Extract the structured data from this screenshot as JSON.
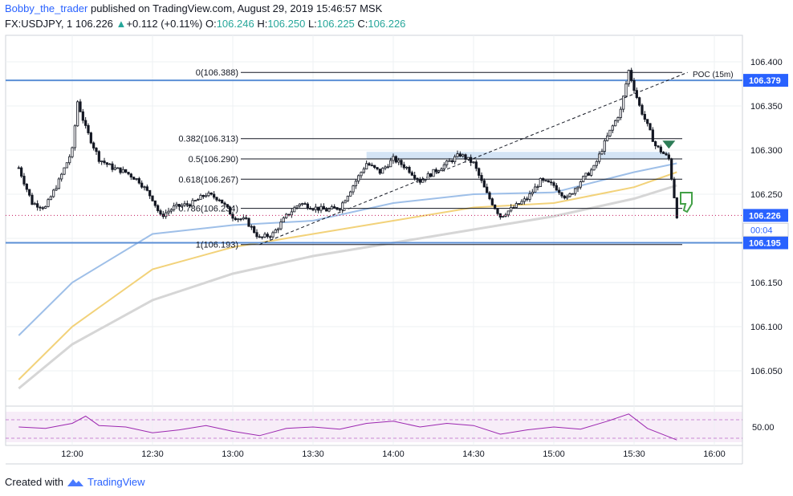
{
  "header": {
    "author": "Bobby_the_trader",
    "published": "published on TradingView.com, August 29, 2019 15:46:57 MSK",
    "symbol": "FX:USDJPY, 1",
    "last": "106.226",
    "change": "+0.112 (+0.11%)",
    "open_label": "O:",
    "open": "106.246",
    "high_label": "H:",
    "high": "106.250",
    "low_label": "L:",
    "low": "106.225",
    "close_label": "C:",
    "close": "106.226"
  },
  "footer": {
    "created_with": "Created with",
    "brand": "TradingView"
  },
  "colors": {
    "candle": "#131722",
    "ema_fast": "#9ebfe8",
    "ema_mid": "#f2d27a",
    "ema_slow": "#d6d6d6",
    "level_line": "#5b8fd6",
    "rsi": "#9c27b0",
    "rsi_band": "#f3e5f5",
    "price_tag": "#2962ff",
    "zone": "#c9ddf3"
  },
  "chart_data": {
    "type": "candlestick",
    "x_ticks": [
      "12:00",
      "12:30",
      "13:00",
      "13:30",
      "14:00",
      "14:30",
      "15:00",
      "15:30",
      "16:00"
    ],
    "y_ticks": [
      "106.400",
      "106.350",
      "106.300",
      "106.250",
      "106.200",
      "106.150",
      "106.100",
      "106.050"
    ],
    "ylim": [
      106.01,
      106.43
    ],
    "price_tags": {
      "upper_level": "106.379",
      "last_price": "106.226",
      "countdown": "00:04",
      "lower_level": "106.195"
    },
    "poc_label": "POC (15m)",
    "fib_labels": [
      {
        "text": "0(106.388)",
        "price": 106.388
      },
      {
        "text": "0.382(106.313)",
        "price": 106.313
      },
      {
        "text": "0.5(106.290)",
        "price": 106.29
      },
      {
        "text": "0.618(106.267)",
        "price": 106.267
      },
      {
        "text": "0.786(106.234)",
        "price": 106.234
      },
      {
        "text": "1(106.193)",
        "price": 106.193
      }
    ],
    "horizontal_levels": [
      106.379,
      106.195
    ],
    "supply_zone": [
      106.29,
      106.298
    ],
    "trendline": {
      "from": [
        "13:10",
        106.193
      ],
      "to": [
        "15:50",
        106.388
      ]
    },
    "price_path": [
      [
        "11:40",
        106.28
      ],
      [
        "11:45",
        106.24
      ],
      [
        "11:50",
        106.235
      ],
      [
        "11:55",
        106.265
      ],
      [
        "12:00",
        106.3
      ],
      [
        "12:02",
        106.355
      ],
      [
        "12:05",
        106.325
      ],
      [
        "12:10",
        106.29
      ],
      [
        "12:15",
        106.28
      ],
      [
        "12:20",
        106.275
      ],
      [
        "12:25",
        106.265
      ],
      [
        "12:30",
        106.245
      ],
      [
        "12:33",
        106.225
      ],
      [
        "12:38",
        106.235
      ],
      [
        "12:45",
        106.24
      ],
      [
        "12:50",
        106.25
      ],
      [
        "12:55",
        106.245
      ],
      [
        "13:00",
        106.225
      ],
      [
        "13:05",
        106.22
      ],
      [
        "13:10",
        106.2
      ],
      [
        "13:15",
        106.205
      ],
      [
        "13:20",
        106.225
      ],
      [
        "13:25",
        106.24
      ],
      [
        "13:30",
        106.235
      ],
      [
        "13:35",
        106.232
      ],
      [
        "13:40",
        106.235
      ],
      [
        "13:45",
        106.26
      ],
      [
        "13:50",
        106.285
      ],
      [
        "13:55",
        106.275
      ],
      [
        "14:00",
        106.29
      ],
      [
        "14:05",
        106.28
      ],
      [
        "14:10",
        106.265
      ],
      [
        "14:15",
        106.275
      ],
      [
        "14:20",
        106.285
      ],
      [
        "14:25",
        106.295
      ],
      [
        "14:30",
        106.285
      ],
      [
        "14:35",
        106.25
      ],
      [
        "14:40",
        106.225
      ],
      [
        "14:45",
        106.235
      ],
      [
        "14:50",
        106.245
      ],
      [
        "14:55",
        106.265
      ],
      [
        "15:00",
        106.26
      ],
      [
        "15:05",
        106.245
      ],
      [
        "15:10",
        106.265
      ],
      [
        "15:15",
        106.28
      ],
      [
        "15:20",
        106.315
      ],
      [
        "15:25",
        106.345
      ],
      [
        "15:28",
        106.39
      ],
      [
        "15:32",
        106.35
      ],
      [
        "15:38",
        106.305
      ],
      [
        "15:43",
        106.29
      ],
      [
        "15:46",
        106.226
      ]
    ],
    "ema_fast": [
      [
        "11:40",
        106.09
      ],
      [
        "12:00",
        106.15
      ],
      [
        "12:30",
        106.205
      ],
      [
        "13:00",
        106.215
      ],
      [
        "13:30",
        106.22
      ],
      [
        "14:00",
        106.24
      ],
      [
        "14:30",
        106.25
      ],
      [
        "15:00",
        106.252
      ],
      [
        "15:30",
        106.275
      ],
      [
        "15:46",
        106.285
      ]
    ],
    "ema_mid": [
      [
        "11:40",
        106.04
      ],
      [
        "12:00",
        106.1
      ],
      [
        "12:30",
        106.165
      ],
      [
        "13:00",
        106.19
      ],
      [
        "13:30",
        106.205
      ],
      [
        "14:00",
        106.22
      ],
      [
        "14:30",
        106.235
      ],
      [
        "15:00",
        106.24
      ],
      [
        "15:30",
        106.258
      ],
      [
        "15:46",
        106.275
      ]
    ],
    "ema_slow": [
      [
        "11:40",
        106.03
      ],
      [
        "12:00",
        106.08
      ],
      [
        "12:30",
        106.13
      ],
      [
        "13:00",
        106.16
      ],
      [
        "13:30",
        106.18
      ],
      [
        "14:00",
        106.195
      ],
      [
        "14:30",
        106.21
      ],
      [
        "15:00",
        106.225
      ],
      [
        "15:30",
        106.245
      ],
      [
        "15:46",
        106.26
      ]
    ],
    "rsi": {
      "tick": "50.00",
      "values": [
        [
          "11:40",
          50
        ],
        [
          "11:50",
          48
        ],
        [
          "12:00",
          55
        ],
        [
          "12:05",
          65
        ],
        [
          "12:10",
          52
        ],
        [
          "12:20",
          50
        ],
        [
          "12:30",
          42
        ],
        [
          "12:40",
          46
        ],
        [
          "12:50",
          52
        ],
        [
          "13:00",
          44
        ],
        [
          "13:10",
          38
        ],
        [
          "13:20",
          48
        ],
        [
          "13:30",
          50
        ],
        [
          "13:40",
          47
        ],
        [
          "13:50",
          55
        ],
        [
          "14:00",
          58
        ],
        [
          "14:10",
          50
        ],
        [
          "14:20",
          55
        ],
        [
          "14:30",
          52
        ],
        [
          "14:40",
          40
        ],
        [
          "14:50",
          46
        ],
        [
          "15:00",
          50
        ],
        [
          "15:10",
          47
        ],
        [
          "15:20",
          58
        ],
        [
          "15:28",
          68
        ],
        [
          "15:35",
          48
        ],
        [
          "15:46",
          32
        ]
      ]
    }
  }
}
